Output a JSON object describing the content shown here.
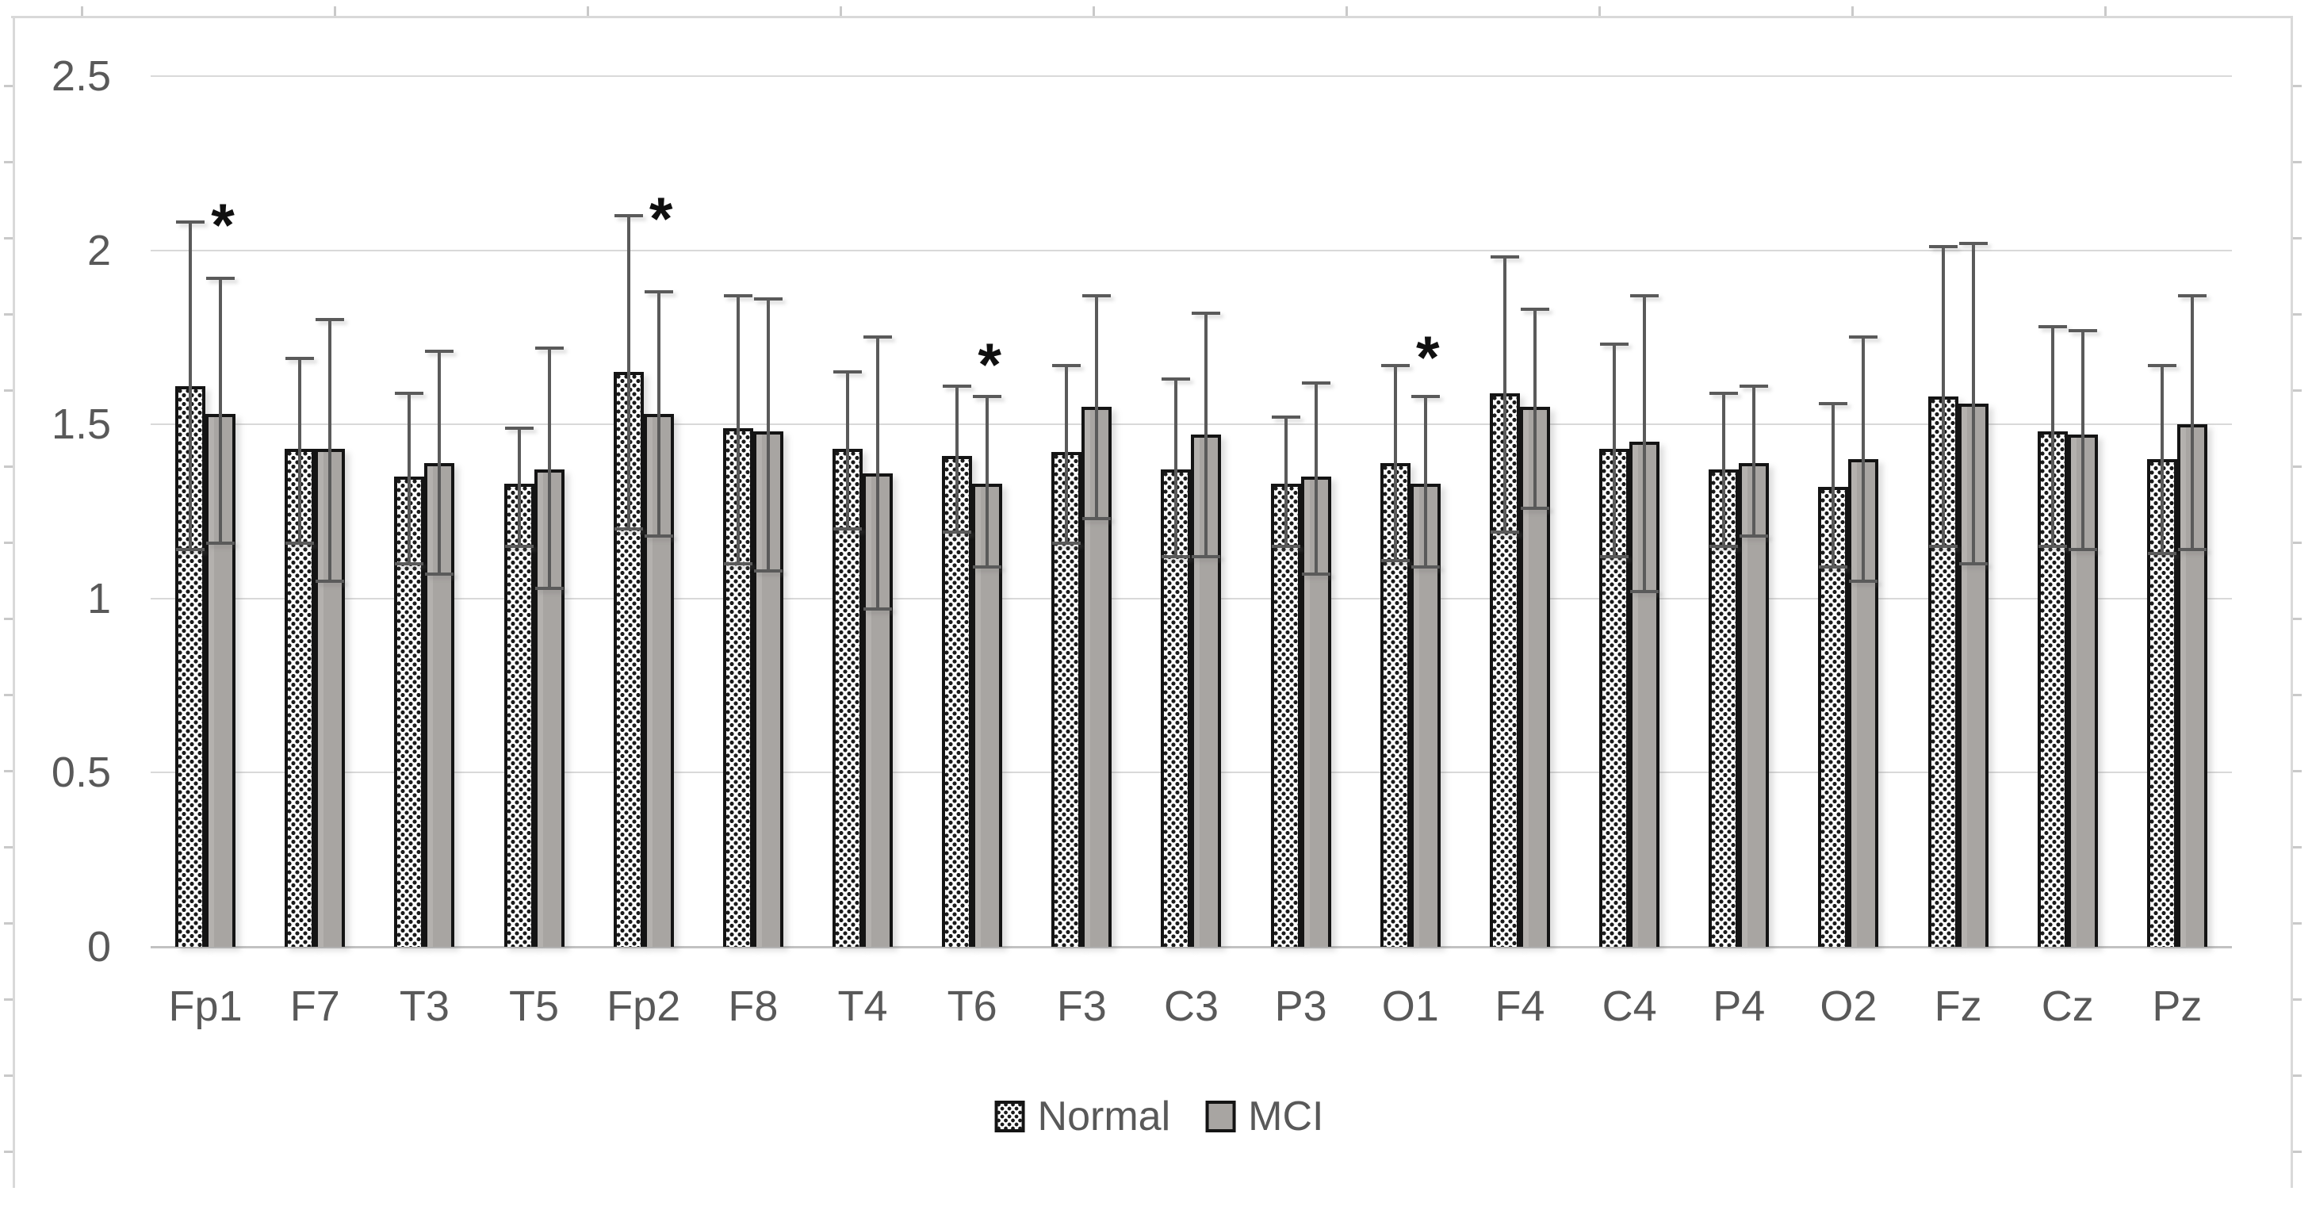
{
  "chart_data": {
    "type": "bar",
    "title": "",
    "xlabel": "",
    "ylabel": "",
    "categories": [
      "Fp1",
      "F7",
      "T3",
      "T5",
      "Fp2",
      "F8",
      "T4",
      "T6",
      "F3",
      "C3",
      "P3",
      "O1",
      "F4",
      "C4",
      "P4",
      "O2",
      "Fz",
      "Cz",
      "Pz"
    ],
    "series": [
      {
        "name": "Normal",
        "style": "dotted-pattern",
        "values": [
          1.61,
          1.43,
          1.35,
          1.33,
          1.65,
          1.49,
          1.43,
          1.41,
          1.42,
          1.37,
          1.33,
          1.39,
          1.59,
          1.43,
          1.37,
          1.32,
          1.58,
          1.48,
          1.4
        ],
        "err_hi": [
          2.08,
          1.69,
          1.59,
          1.49,
          2.1,
          1.87,
          1.65,
          1.61,
          1.67,
          1.63,
          1.52,
          1.67,
          1.98,
          1.73,
          1.59,
          1.56,
          2.01,
          1.78,
          1.67
        ],
        "err_lo": [
          1.14,
          1.16,
          1.1,
          1.15,
          1.2,
          1.1,
          1.2,
          1.19,
          1.16,
          1.12,
          1.15,
          1.11,
          1.19,
          1.12,
          1.15,
          1.09,
          1.15,
          1.15,
          1.13
        ]
      },
      {
        "name": "MCI",
        "style": "gray-fill",
        "values": [
          1.53,
          1.43,
          1.39,
          1.37,
          1.53,
          1.48,
          1.36,
          1.33,
          1.55,
          1.47,
          1.35,
          1.33,
          1.55,
          1.45,
          1.39,
          1.4,
          1.56,
          1.47,
          1.5
        ],
        "err_hi": [
          1.92,
          1.8,
          1.71,
          1.72,
          1.88,
          1.86,
          1.75,
          1.58,
          1.87,
          1.82,
          1.62,
          1.58,
          1.83,
          1.87,
          1.61,
          1.75,
          2.02,
          1.77,
          1.87
        ],
        "err_lo": [
          1.16,
          1.05,
          1.07,
          1.03,
          1.18,
          1.08,
          0.97,
          1.09,
          1.23,
          1.12,
          1.07,
          1.09,
          1.26,
          1.02,
          1.18,
          1.05,
          1.1,
          1.14,
          1.14
        ]
      }
    ],
    "significance_markers": [
      {
        "category": "Fp1",
        "y": 2.16,
        "glyph": "*"
      },
      {
        "category": "Fp2",
        "y": 2.18,
        "glyph": "*"
      },
      {
        "category": "T6",
        "y": 1.76,
        "glyph": "*"
      },
      {
        "category": "O1",
        "y": 1.78,
        "glyph": "*"
      }
    ],
    "yticks": [
      "0",
      "0.5",
      "1",
      "1.5",
      "2",
      "2.5"
    ],
    "ytick_values": [
      0,
      0.5,
      1,
      1.5,
      2,
      2.5
    ],
    "ylim": [
      0,
      2.5
    ],
    "grid": true,
    "error_bars": true,
    "legend_position": "bottom"
  },
  "legend": {
    "items": [
      {
        "label": "Normal"
      },
      {
        "label": "MCI"
      }
    ]
  },
  "colors": {
    "background": "#ffffff",
    "gridline": "#d9d9d9",
    "axis_line": "#c2c2c2",
    "figure_border": "#d9d9d9",
    "text": "#595959",
    "bar_border": "#141414",
    "mci_fill": "#a8a5a2",
    "normal_fill": "#ffffff",
    "normal_dot": "#1a1a1a",
    "error_bar": "#5a5a5a",
    "significance": "#101010"
  }
}
